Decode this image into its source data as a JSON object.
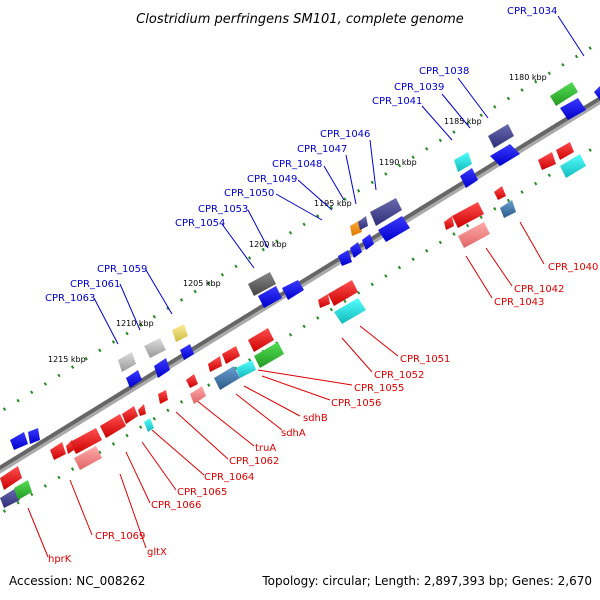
{
  "title": "Clostridium perfringens SM101, complete genome",
  "accession": "Accession: NC_008262",
  "summary": "Topology: circular; Length: 2,897,393 bp; Genes: 2,670",
  "colors": {
    "plus_label": "#0000cc",
    "minus_label": "#dd0000",
    "backbone": "#777777",
    "tick": "#228b22"
  },
  "ticks": [
    "1180 kbp",
    "1185 kbp",
    "1190 kbp",
    "1195 kbp",
    "1200 kbp",
    "1205 kbp",
    "1210 kbp",
    "1215 kbp"
  ],
  "plus_labels": [
    "CPR_1034",
    "CPR_1038",
    "CPR_1039",
    "CPR_1041",
    "CPR_1046",
    "CPR_1047",
    "CPR_1048",
    "CPR_1049",
    "CPR_1050",
    "CPR_1053",
    "CPR_1054",
    "CPR_1059",
    "CPR_1061",
    "CPR_1063"
  ],
  "minus_labels": [
    "CPR_1040",
    "CPR_1042",
    "CPR_1043",
    "CPR_1051",
    "CPR_1052",
    "CPR_1055",
    "CPR_1056",
    "sdhB",
    "sdhA",
    "truA",
    "CPR_1062",
    "CPR_1064",
    "CPR_1065",
    "CPR_1066",
    "CPR_1069",
    "gltX",
    "hprK"
  ]
}
